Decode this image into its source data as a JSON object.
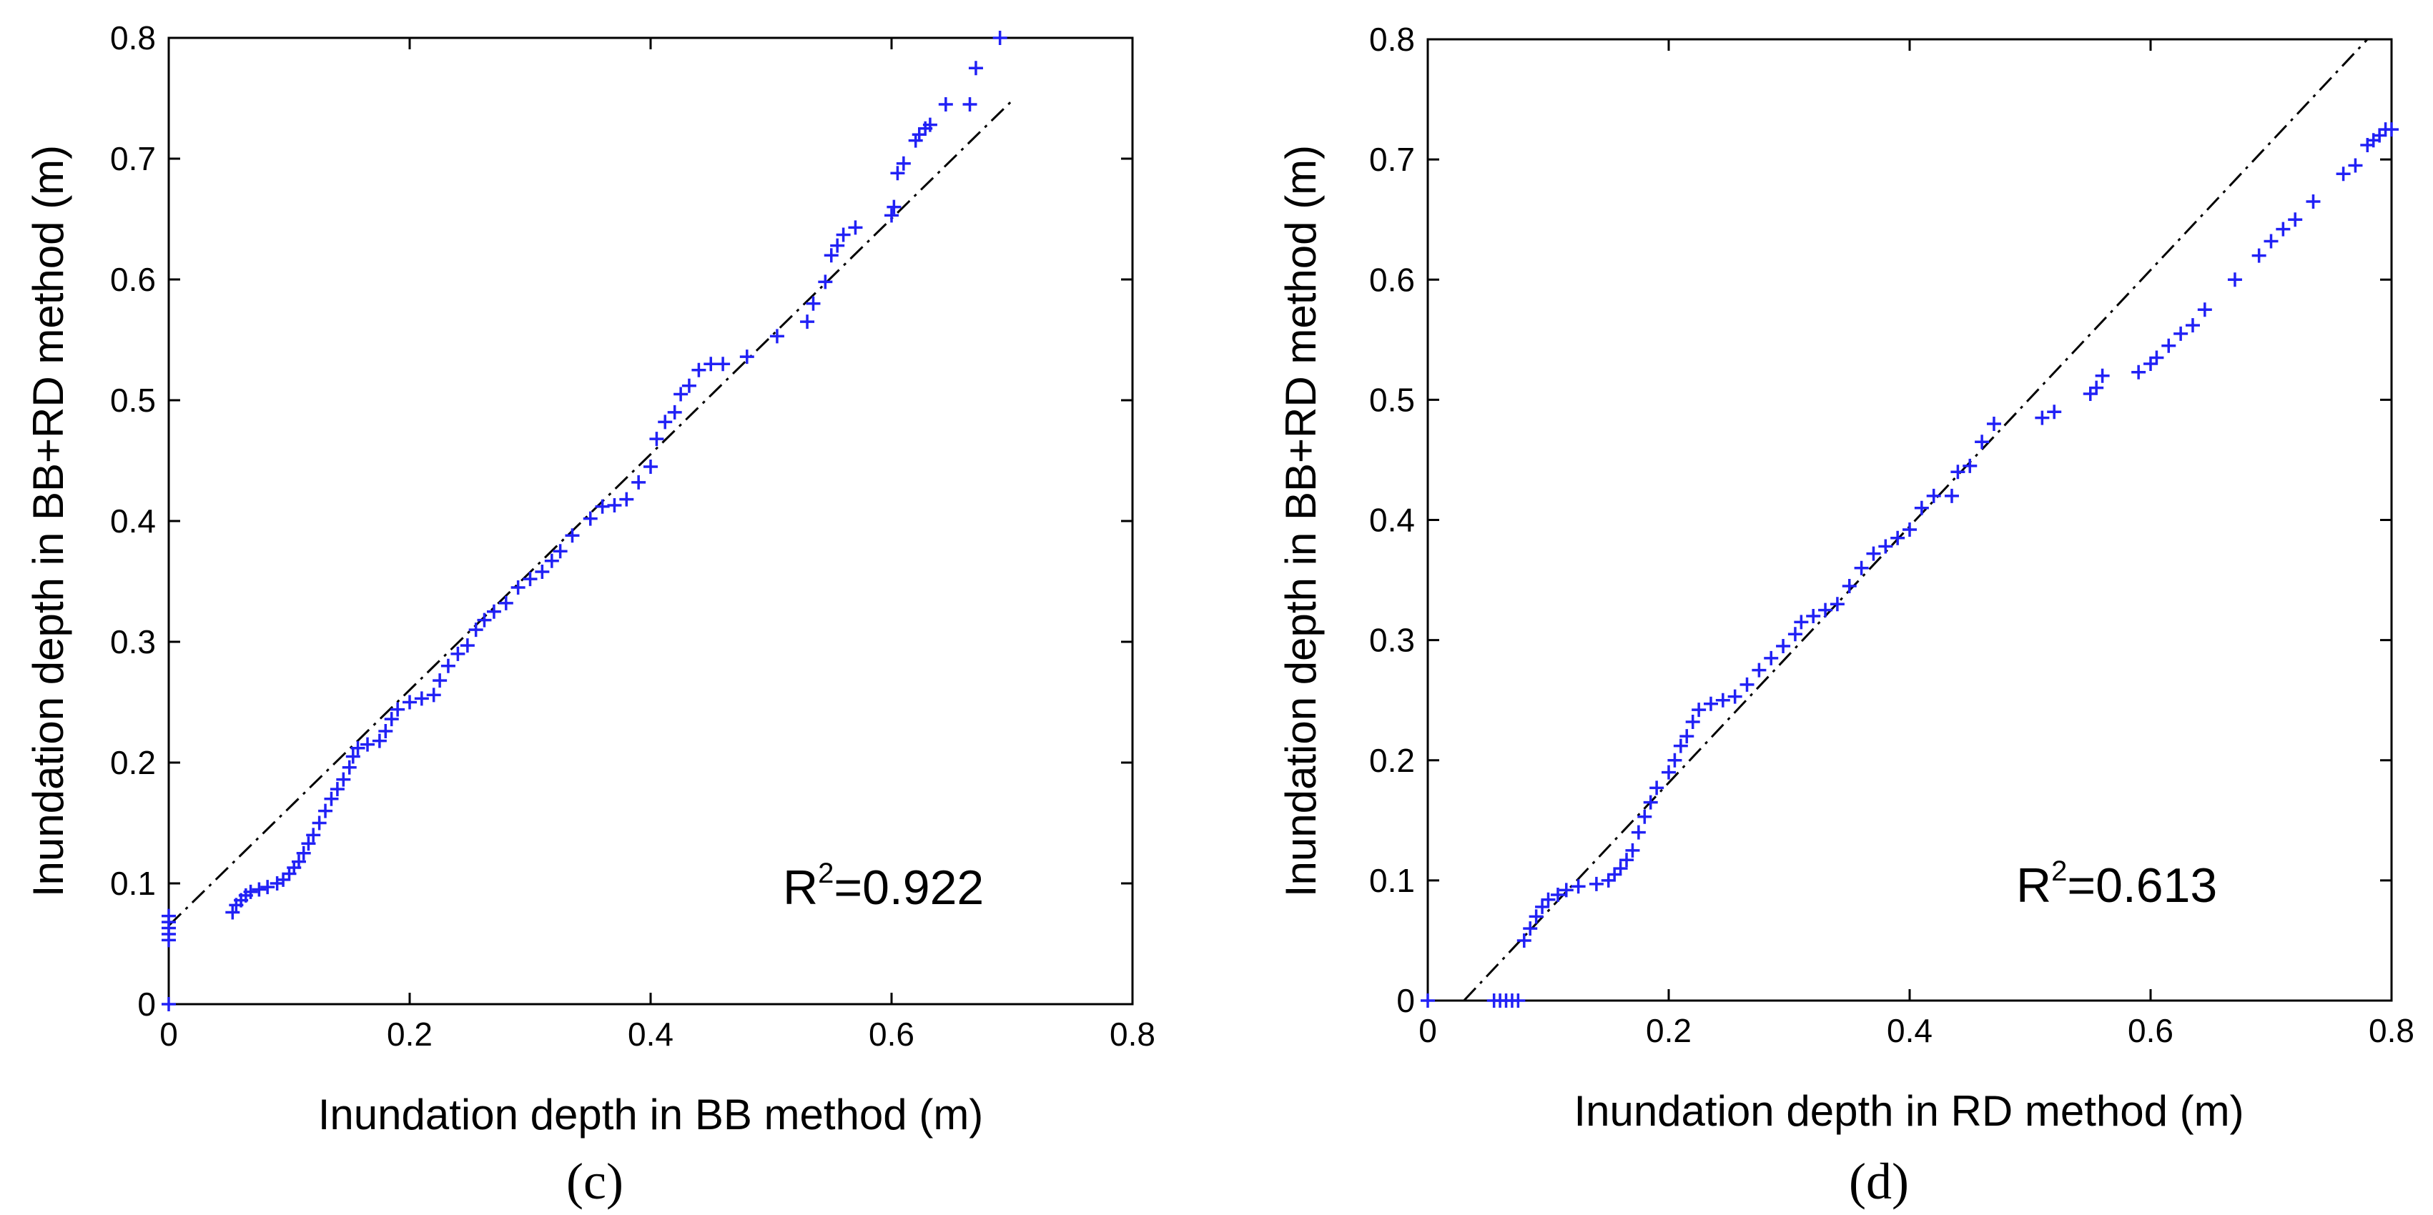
{
  "chart_data": [
    {
      "type": "scatter",
      "panel_label": "(c)",
      "xlabel": "Inundation depth in BB method (m)",
      "ylabel": "Inundation depth in BB+RD method (m)",
      "xlim": [
        0,
        0.8
      ],
      "ylim": [
        0,
        0.8
      ],
      "xticks": [
        "0",
        "0.2",
        "0.4",
        "0.6",
        "0.8"
      ],
      "yticks": [
        "0",
        "0.1",
        "0.2",
        "0.3",
        "0.4",
        "0.5",
        "0.6",
        "0.7",
        "0.8"
      ],
      "annotation": {
        "base": "R",
        "sup": "2",
        "value": "=0.922"
      },
      "fit_line": {
        "x": [
          0,
          0.7
        ],
        "y": [
          0.065,
          0.748
        ]
      },
      "series": [
        {
          "name": "points",
          "marker": "+",
          "color": "#2121f5",
          "points": [
            [
              0,
              0
            ],
            [
              0,
              0.053
            ],
            [
              0,
              0.058
            ],
            [
              0,
              0.063
            ],
            [
              0,
              0.068
            ],
            [
              0,
              0.073
            ],
            [
              0.053,
              0.076
            ],
            [
              0.056,
              0.082
            ],
            [
              0.06,
              0.086
            ],
            [
              0.064,
              0.09
            ],
            [
              0.068,
              0.093
            ],
            [
              0.075,
              0.095
            ],
            [
              0.082,
              0.097
            ],
            [
              0.09,
              0.1
            ],
            [
              0.095,
              0.103
            ],
            [
              0.1,
              0.108
            ],
            [
              0.104,
              0.113
            ],
            [
              0.108,
              0.118
            ],
            [
              0.112,
              0.125
            ],
            [
              0.116,
              0.133
            ],
            [
              0.12,
              0.14
            ],
            [
              0.125,
              0.15
            ],
            [
              0.13,
              0.16
            ],
            [
              0.135,
              0.17
            ],
            [
              0.14,
              0.178
            ],
            [
              0.145,
              0.186
            ],
            [
              0.15,
              0.196
            ],
            [
              0.153,
              0.205
            ],
            [
              0.157,
              0.212
            ],
            [
              0.165,
              0.215
            ],
            [
              0.175,
              0.218
            ],
            [
              0.18,
              0.226
            ],
            [
              0.185,
              0.236
            ],
            [
              0.19,
              0.244
            ],
            [
              0.2,
              0.25
            ],
            [
              0.21,
              0.253
            ],
            [
              0.22,
              0.256
            ],
            [
              0.225,
              0.268
            ],
            [
              0.232,
              0.28
            ],
            [
              0.24,
              0.29
            ],
            [
              0.248,
              0.297
            ],
            [
              0.255,
              0.31
            ],
            [
              0.262,
              0.318
            ],
            [
              0.27,
              0.325
            ],
            [
              0.28,
              0.332
            ],
            [
              0.29,
              0.345
            ],
            [
              0.3,
              0.352
            ],
            [
              0.31,
              0.358
            ],
            [
              0.318,
              0.367
            ],
            [
              0.325,
              0.375
            ],
            [
              0.335,
              0.388
            ],
            [
              0.35,
              0.402
            ],
            [
              0.36,
              0.412
            ],
            [
              0.37,
              0.413
            ],
            [
              0.38,
              0.418
            ],
            [
              0.39,
              0.432
            ],
            [
              0.4,
              0.445
            ],
            [
              0.405,
              0.468
            ],
            [
              0.412,
              0.482
            ],
            [
              0.42,
              0.49
            ],
            [
              0.425,
              0.505
            ],
            [
              0.432,
              0.512
            ],
            [
              0.44,
              0.525
            ],
            [
              0.45,
              0.53
            ],
            [
              0.46,
              0.53
            ],
            [
              0.48,
              0.536
            ],
            [
              0.505,
              0.553
            ],
            [
              0.53,
              0.565
            ],
            [
              0.535,
              0.58
            ],
            [
              0.545,
              0.598
            ],
            [
              0.55,
              0.62
            ],
            [
              0.555,
              0.628
            ],
            [
              0.56,
              0.637
            ],
            [
              0.57,
              0.643
            ],
            [
              0.6,
              0.653
            ],
            [
              0.602,
              0.66
            ],
            [
              0.605,
              0.688
            ],
            [
              0.61,
              0.696
            ],
            [
              0.62,
              0.715
            ],
            [
              0.623,
              0.72
            ],
            [
              0.628,
              0.725
            ],
            [
              0.632,
              0.728
            ],
            [
              0.645,
              0.745
            ],
            [
              0.665,
              0.745
            ],
            [
              0.67,
              0.775
            ],
            [
              0.69,
              0.8
            ]
          ]
        }
      ]
    },
    {
      "type": "scatter",
      "panel_label": "(d)",
      "xlabel": "Inundation depth in RD method (m)",
      "ylabel": "Inundation depth in BB+RD method (m)",
      "xlim": [
        0,
        0.8
      ],
      "ylim": [
        0,
        0.8
      ],
      "xticks": [
        "0",
        "0.2",
        "0.4",
        "0.6",
        "0.8"
      ],
      "yticks": [
        "0",
        "0.1",
        "0.2",
        "0.3",
        "0.4",
        "0.5",
        "0.6",
        "0.7",
        "0.8"
      ],
      "annotation": {
        "base": "R",
        "sup": "2",
        "value": "=0.613"
      },
      "fit_line": {
        "x": [
          0.03,
          0.78
        ],
        "y": [
          0,
          0.8
        ]
      },
      "series": [
        {
          "name": "points",
          "marker": "+",
          "color": "#2121f5",
          "points": [
            [
              0,
              0
            ],
            [
              0.055,
              0
            ],
            [
              0.06,
              0
            ],
            [
              0.065,
              0
            ],
            [
              0.07,
              0
            ],
            [
              0.075,
              0
            ],
            [
              0.08,
              0.05
            ],
            [
              0.085,
              0.06
            ],
            [
              0.09,
              0.07
            ],
            [
              0.095,
              0.078
            ],
            [
              0.1,
              0.084
            ],
            [
              0.108,
              0.088
            ],
            [
              0.115,
              0.092
            ],
            [
              0.125,
              0.095
            ],
            [
              0.14,
              0.097
            ],
            [
              0.15,
              0.1
            ],
            [
              0.155,
              0.105
            ],
            [
              0.16,
              0.11
            ],
            [
              0.165,
              0.117
            ],
            [
              0.17,
              0.125
            ],
            [
              0.175,
              0.14
            ],
            [
              0.18,
              0.153
            ],
            [
              0.185,
              0.165
            ],
            [
              0.19,
              0.177
            ],
            [
              0.2,
              0.19
            ],
            [
              0.205,
              0.2
            ],
            [
              0.21,
              0.212
            ],
            [
              0.215,
              0.22
            ],
            [
              0.22,
              0.232
            ],
            [
              0.225,
              0.242
            ],
            [
              0.235,
              0.247
            ],
            [
              0.245,
              0.25
            ],
            [
              0.255,
              0.253
            ],
            [
              0.265,
              0.263
            ],
            [
              0.275,
              0.275
            ],
            [
              0.285,
              0.285
            ],
            [
              0.295,
              0.295
            ],
            [
              0.305,
              0.305
            ],
            [
              0.31,
              0.315
            ],
            [
              0.32,
              0.32
            ],
            [
              0.33,
              0.325
            ],
            [
              0.34,
              0.33
            ],
            [
              0.35,
              0.345
            ],
            [
              0.36,
              0.36
            ],
            [
              0.37,
              0.372
            ],
            [
              0.38,
              0.378
            ],
            [
              0.39,
              0.385
            ],
            [
              0.4,
              0.392
            ],
            [
              0.41,
              0.41
            ],
            [
              0.42,
              0.42
            ],
            [
              0.435,
              0.42
            ],
            [
              0.44,
              0.44
            ],
            [
              0.45,
              0.445
            ],
            [
              0.46,
              0.465
            ],
            [
              0.47,
              0.48
            ],
            [
              0.51,
              0.485
            ],
            [
              0.52,
              0.49
            ],
            [
              0.55,
              0.505
            ],
            [
              0.555,
              0.51
            ],
            [
              0.56,
              0.52
            ],
            [
              0.59,
              0.523
            ],
            [
              0.6,
              0.53
            ],
            [
              0.605,
              0.535
            ],
            [
              0.615,
              0.545
            ],
            [
              0.625,
              0.555
            ],
            [
              0.635,
              0.562
            ],
            [
              0.645,
              0.575
            ],
            [
              0.67,
              0.6
            ],
            [
              0.69,
              0.62
            ],
            [
              0.7,
              0.632
            ],
            [
              0.71,
              0.642
            ],
            [
              0.72,
              0.65
            ],
            [
              0.735,
              0.665
            ],
            [
              0.76,
              0.688
            ],
            [
              0.77,
              0.695
            ],
            [
              0.78,
              0.712
            ],
            [
              0.785,
              0.716
            ],
            [
              0.79,
              0.72
            ],
            [
              0.795,
              0.725
            ],
            [
              0.8,
              0.725
            ]
          ]
        }
      ]
    }
  ]
}
